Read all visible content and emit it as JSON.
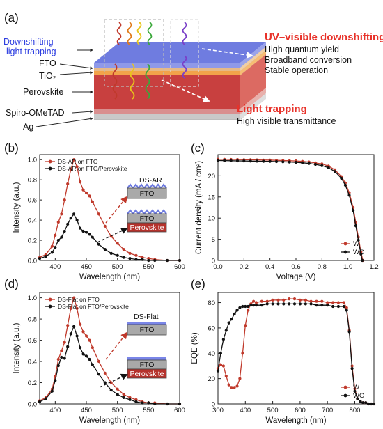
{
  "figure": {
    "panel_a": {
      "label": "(a)",
      "layer_labels": [
        "Downshifting",
        "light trapping",
        "FTO",
        "TiO₂",
        "Perovskite",
        "Spiro-OMeTAD",
        "Ag"
      ],
      "uv_title": "UV–visible downshifting",
      "uv_points": [
        "High quantum yield",
        "Broadband conversion",
        "Stable operation"
      ],
      "lt_title": "Light trapping",
      "lt_points": [
        "High visible transmittance"
      ],
      "colors": {
        "top_layer": "#7a86e8",
        "fto": "#e6b987",
        "tio2": "#f2a34a",
        "perovskite": "#c8403f",
        "spiro": "#d98f8f",
        "ag": "#c9c9c9",
        "uv_title": "#e8322a"
      }
    },
    "panel_b": {
      "label": "(b)",
      "inset_top": {
        "coating": "DS-AR",
        "layers": [
          "FTO"
        ]
      },
      "inset_bottom": {
        "layers": [
          "FTO",
          "Perovskite"
        ]
      }
    },
    "panel_c": {
      "label": "(c)"
    },
    "panel_d": {
      "label": "(d)",
      "inset_top": {
        "coating": "DS-Flat",
        "layers": [
          "FTO"
        ]
      },
      "inset_bottom": {
        "layers": [
          "FTO",
          "Perovskite"
        ]
      }
    },
    "panel_e": {
      "label": "(e)"
    }
  },
  "chart_data": [
    {
      "panel": "b",
      "type": "line",
      "xlabel": "Wavelength (nm)",
      "ylabel": "Intensity (a.u.)",
      "xlim": [
        375,
        600
      ],
      "ylim": [
        0,
        1.05
      ],
      "xticks": [
        400,
        450,
        500,
        550,
        600
      ],
      "yticks": [
        0.0,
        0.2,
        0.4,
        0.6,
        0.8,
        1.0
      ],
      "legend_position": "top-left",
      "series": [
        {
          "name": "DS-AR on FTO",
          "color": "#c0392b",
          "marker": "circle",
          "x": [
            375,
            385,
            395,
            400,
            405,
            410,
            415,
            420,
            425,
            430,
            435,
            440,
            445,
            450,
            455,
            460,
            470,
            480,
            490,
            500,
            510,
            520,
            530,
            540,
            550,
            560,
            580,
            600
          ],
          "y": [
            0.03,
            0.06,
            0.14,
            0.25,
            0.38,
            0.46,
            0.6,
            0.76,
            0.9,
            1.0,
            0.93,
            0.78,
            0.7,
            0.67,
            0.64,
            0.58,
            0.46,
            0.34,
            0.24,
            0.17,
            0.11,
            0.07,
            0.05,
            0.03,
            0.02,
            0.01,
            0.0,
            0.0
          ]
        },
        {
          "name": "DS-AR on FTO/Perovskite",
          "color": "#111111",
          "marker": "circle",
          "x": [
            375,
            385,
            395,
            400,
            405,
            410,
            415,
            420,
            425,
            430,
            435,
            440,
            445,
            450,
            455,
            460,
            470,
            480,
            490,
            500,
            510,
            520,
            530,
            540,
            550,
            560,
            580,
            600
          ],
          "y": [
            0.02,
            0.04,
            0.08,
            0.13,
            0.2,
            0.23,
            0.29,
            0.36,
            0.42,
            0.46,
            0.4,
            0.32,
            0.29,
            0.28,
            0.26,
            0.23,
            0.16,
            0.11,
            0.07,
            0.05,
            0.03,
            0.02,
            0.01,
            0.01,
            0.0,
            0.0,
            0.0,
            0.0
          ]
        }
      ]
    },
    {
      "panel": "c",
      "type": "line",
      "xlabel": "Voltage (V)",
      "ylabel": "Current density (mA / cm²)",
      "xlim": [
        0,
        1.2
      ],
      "ylim": [
        0,
        25
      ],
      "xticks": [
        0.0,
        0.2,
        0.4,
        0.6,
        0.8,
        1.0,
        1.2
      ],
      "yticks": [
        0,
        5,
        10,
        15,
        20
      ],
      "legend_position": "bottom-right",
      "series": [
        {
          "name": "W",
          "color": "#c0392b",
          "marker": "circle",
          "x": [
            0,
            0.05,
            0.1,
            0.15,
            0.2,
            0.25,
            0.3,
            0.35,
            0.4,
            0.45,
            0.5,
            0.55,
            0.6,
            0.65,
            0.7,
            0.75,
            0.8,
            0.85,
            0.9,
            0.95,
            0.98,
            1.01,
            1.04,
            1.06,
            1.08,
            1.1,
            1.115
          ],
          "y": [
            23.9,
            23.88,
            23.85,
            23.83,
            23.8,
            23.78,
            23.75,
            23.72,
            23.7,
            23.65,
            23.6,
            23.55,
            23.5,
            23.4,
            23.25,
            23.05,
            22.8,
            22.3,
            21.4,
            19.8,
            18.3,
            16.0,
            12.5,
            9.0,
            5.5,
            2.0,
            0.0
          ]
        },
        {
          "name": "WO",
          "color": "#111111",
          "marker": "circle",
          "x": [
            0,
            0.05,
            0.1,
            0.15,
            0.2,
            0.25,
            0.3,
            0.35,
            0.4,
            0.45,
            0.5,
            0.55,
            0.6,
            0.65,
            0.7,
            0.75,
            0.8,
            0.85,
            0.9,
            0.95,
            0.98,
            1.01,
            1.04,
            1.06,
            1.08,
            1.1,
            1.11
          ],
          "y": [
            23.6,
            23.58,
            23.55,
            23.52,
            23.5,
            23.47,
            23.45,
            23.42,
            23.4,
            23.35,
            23.3,
            23.25,
            23.18,
            23.08,
            22.92,
            22.7,
            22.4,
            21.9,
            21.0,
            19.4,
            17.8,
            15.4,
            11.8,
            8.2,
            4.8,
            1.5,
            0.0
          ]
        }
      ]
    },
    {
      "panel": "d",
      "type": "line",
      "xlabel": "Wavelength (nm)",
      "ylabel": "Intensity (a.u.)",
      "xlim": [
        375,
        600
      ],
      "ylim": [
        0,
        1.05
      ],
      "xticks": [
        400,
        450,
        500,
        550,
        600
      ],
      "yticks": [
        0.0,
        0.2,
        0.4,
        0.6,
        0.8,
        1.0
      ],
      "legend_position": "top-left",
      "series": [
        {
          "name": "DS-Flat on FTO",
          "color": "#c0392b",
          "marker": "circle",
          "x": [
            375,
            385,
            395,
            400,
            405,
            410,
            415,
            420,
            425,
            430,
            435,
            440,
            445,
            450,
            455,
            460,
            470,
            480,
            490,
            500,
            510,
            520,
            530,
            540,
            550,
            560,
            580,
            600
          ],
          "y": [
            0.03,
            0.06,
            0.14,
            0.26,
            0.42,
            0.5,
            0.58,
            0.74,
            0.9,
            1.0,
            0.9,
            0.75,
            0.68,
            0.64,
            0.6,
            0.53,
            0.4,
            0.29,
            0.2,
            0.14,
            0.09,
            0.06,
            0.04,
            0.02,
            0.01,
            0.01,
            0.0,
            0.0
          ]
        },
        {
          "name": "DS-Flat on FTO/Perovskite",
          "color": "#111111",
          "marker": "circle",
          "x": [
            375,
            385,
            395,
            400,
            405,
            410,
            415,
            420,
            425,
            430,
            435,
            440,
            445,
            450,
            455,
            460,
            470,
            480,
            490,
            500,
            510,
            520,
            530,
            540,
            550,
            560,
            580,
            600
          ],
          "y": [
            0.02,
            0.05,
            0.12,
            0.22,
            0.36,
            0.44,
            0.43,
            0.54,
            0.66,
            0.73,
            0.64,
            0.53,
            0.47,
            0.45,
            0.42,
            0.37,
            0.28,
            0.2,
            0.13,
            0.09,
            0.06,
            0.04,
            0.02,
            0.01,
            0.01,
            0.0,
            0.0,
            0.0
          ]
        }
      ]
    },
    {
      "panel": "e",
      "type": "line",
      "xlabel": "Wavelength (nm)",
      "ylabel": "EQE (%)",
      "xlim": [
        300,
        870
      ],
      "ylim": [
        0,
        88
      ],
      "xticks": [
        300,
        400,
        500,
        600,
        700,
        800
      ],
      "yticks": [
        0,
        20,
        40,
        60,
        80
      ],
      "legend_position": "bottom-right",
      "series": [
        {
          "name": "W",
          "color": "#c0392b",
          "marker": "circle",
          "x": [
            300,
            310,
            320,
            330,
            340,
            350,
            360,
            370,
            380,
            390,
            400,
            410,
            420,
            430,
            440,
            460,
            480,
            500,
            520,
            540,
            560,
            580,
            600,
            620,
            640,
            660,
            680,
            700,
            720,
            740,
            760,
            770,
            780,
            790,
            800,
            810,
            820,
            830,
            840,
            850,
            860,
            870
          ],
          "y": [
            28,
            31,
            30,
            22,
            15,
            13,
            13,
            14,
            20,
            40,
            62,
            74,
            79,
            81,
            80,
            81,
            81,
            82,
            82,
            82,
            83,
            83,
            82,
            82,
            81,
            81,
            81,
            80,
            80,
            80,
            80,
            76,
            58,
            30,
            12,
            4,
            2,
            1,
            1,
            0,
            0,
            0
          ]
        },
        {
          "name": "WO",
          "color": "#111111",
          "marker": "circle",
          "x": [
            300,
            310,
            320,
            330,
            340,
            350,
            360,
            370,
            380,
            390,
            400,
            410,
            420,
            430,
            440,
            460,
            480,
            500,
            520,
            540,
            560,
            580,
            600,
            620,
            640,
            660,
            680,
            700,
            720,
            740,
            760,
            770,
            780,
            790,
            800,
            810,
            820,
            830,
            840,
            850,
            860,
            870
          ],
          "y": [
            26,
            40,
            51,
            58,
            64,
            67,
            71,
            74,
            76,
            77,
            77,
            77,
            78,
            78,
            78,
            78,
            79,
            79,
            79,
            79,
            79,
            79,
            79,
            79,
            79,
            78,
            78,
            78,
            77,
            77,
            77,
            74,
            57,
            28,
            10,
            4,
            2,
            1,
            1,
            0,
            0,
            0
          ]
        }
      ]
    }
  ]
}
